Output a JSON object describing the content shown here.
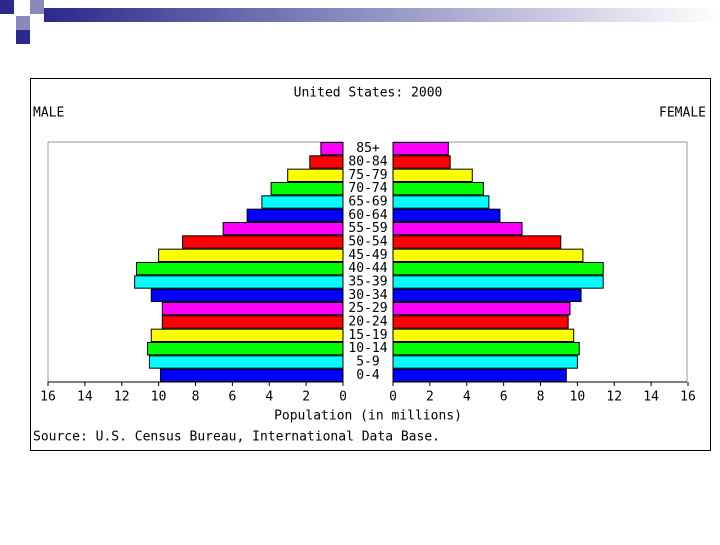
{
  "chart_data": {
    "type": "population-pyramid",
    "title": "United States: 2000",
    "left_label": "MALE",
    "right_label": "FEMALE",
    "xlabel": "Population (in millions)",
    "source": "Source: U.S. Census Bureau, International Data Base.",
    "categories": [
      "0-4",
      "5-9",
      "10-14",
      "15-19",
      "20-24",
      "25-29",
      "30-34",
      "35-39",
      "40-44",
      "45-49",
      "50-54",
      "55-59",
      "60-64",
      "65-69",
      "70-74",
      "75-79",
      "80-84",
      "85+"
    ],
    "colors": [
      "#0000ff",
      "#00ffff",
      "#00ff00",
      "#ffff00",
      "#ff0000",
      "#ff00ff",
      "#0000ff",
      "#00ffff",
      "#00ff00",
      "#ffff00",
      "#ff0000",
      "#ff00ff",
      "#0000ff",
      "#00ffff",
      "#00ff00",
      "#ffff00",
      "#ff0000",
      "#ff00ff"
    ],
    "series": [
      {
        "name": "MALE",
        "values": [
          9.9,
          10.5,
          10.6,
          10.4,
          9.8,
          9.8,
          10.4,
          11.3,
          11.2,
          10.0,
          8.7,
          6.5,
          5.2,
          4.4,
          3.9,
          3.0,
          1.8,
          1.2
        ]
      },
      {
        "name": "FEMALE",
        "values": [
          9.4,
          10.0,
          10.1,
          9.8,
          9.5,
          9.6,
          10.2,
          11.4,
          11.4,
          10.3,
          9.1,
          7.0,
          5.8,
          5.2,
          4.9,
          4.3,
          3.1,
          3.0
        ]
      }
    ],
    "xlim": [
      0,
      16
    ],
    "xticks": [
      0,
      2,
      4,
      6,
      8,
      10,
      12,
      14,
      16
    ]
  }
}
